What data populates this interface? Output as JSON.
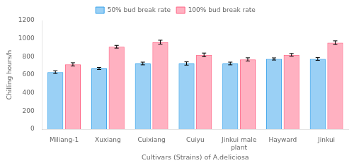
{
  "chart_data": {
    "type": "bar",
    "categories": [
      "Miliang-1",
      "Xuxiang",
      "Cuixiang",
      "Cuiyu",
      "Jinkui male\nplant",
      "Hayward",
      "Jinkui"
    ],
    "series": [
      {
        "name": "50% bud break rate",
        "values": [
          630,
          670,
          725,
          725,
          725,
          775,
          775
        ],
        "errors": [
          15,
          12,
          15,
          18,
          15,
          12,
          15
        ]
      },
      {
        "name": "100% bud break rate",
        "values": [
          715,
          910,
          960,
          820,
          770,
          820,
          955
        ],
        "errors": [
          18,
          15,
          22,
          20,
          18,
          15,
          20
        ]
      }
    ],
    "xlabel": "Cultivars (Strains) of A.deliciosa",
    "ylabel": "Chilling hours/h",
    "ylim": [
      0,
      1200
    ],
    "yticks": [
      0,
      200,
      400,
      600,
      800,
      1000,
      1200
    ],
    "grid": false,
    "legend": "top"
  }
}
